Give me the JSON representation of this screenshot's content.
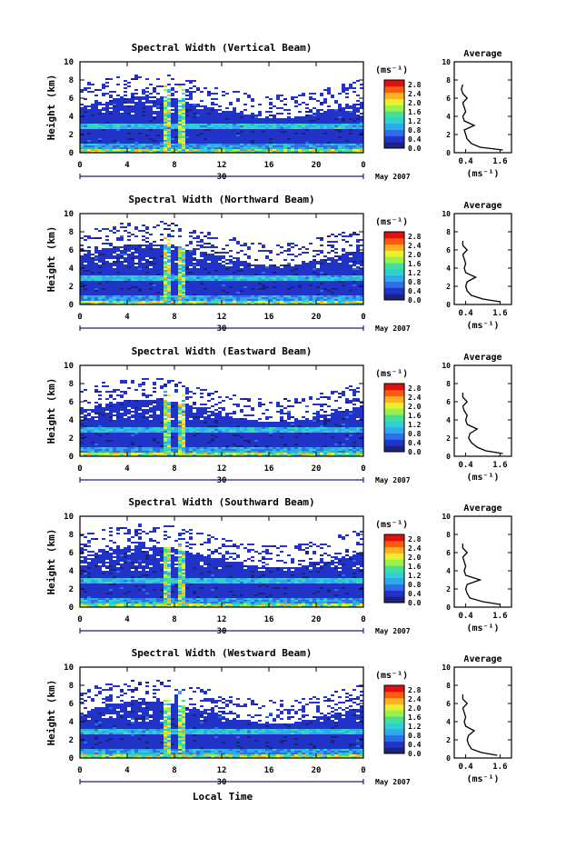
{
  "figure": {
    "xlabel": "Local Time",
    "date_label": "May 2007",
    "day_label": "30",
    "colors": {
      "white_gap": "#ffffff",
      "axes": "#000000"
    }
  },
  "colorbar": {
    "unit": "(ms⁻¹)",
    "ticks": [
      "2.8",
      "2.4",
      "2.0",
      "1.6",
      "1.2",
      "0.8",
      "0.4",
      "0.0"
    ],
    "range": [
      0.0,
      3.0
    ],
    "colormap": [
      "#1a237e",
      "#2233c8",
      "#2e6ee8",
      "#2fa8ee",
      "#30d0d0",
      "#44e09a",
      "#9cf04a",
      "#e8f030",
      "#ffb020",
      "#ff5a10",
      "#e01010"
    ]
  },
  "chart_data": [
    {
      "type": "heatmap",
      "title": "Spectral Width (Vertical Beam)",
      "xlabel": "",
      "ylabel": "Height (km)",
      "x_ticks": [
        "0",
        "4",
        "8",
        "12",
        "16",
        "20",
        "0"
      ],
      "y_ticks": [
        "0",
        "2",
        "4",
        "6",
        "8",
        "10"
      ],
      "xlim": [
        0,
        24
      ],
      "ylim": [
        0,
        10
      ],
      "profile": {
        "title": "Average",
        "xlabel": "(ms⁻¹)",
        "x_ticks": [
          "0.4",
          "1.6"
        ],
        "xlim": [
          0.0,
          2.0
        ],
        "y_ticks": [
          "0",
          "2",
          "4",
          "6",
          "8",
          "10"
        ],
        "height_km": [
          0.3,
          0.6,
          1.0,
          1.5,
          2.0,
          2.5,
          3.0,
          3.5,
          4.0,
          4.5,
          5.0,
          5.5,
          6.0,
          6.5,
          7.0,
          7.5
        ],
        "width": [
          1.7,
          0.9,
          0.6,
          0.45,
          0.4,
          0.35,
          0.7,
          0.35,
          0.3,
          0.4,
          0.35,
          0.3,
          0.45,
          0.3,
          0.25,
          0.3
        ]
      }
    },
    {
      "type": "heatmap",
      "title": "Spectral Width (Northward Beam)",
      "xlabel": "",
      "ylabel": "Height (km)",
      "x_ticks": [
        "0",
        "4",
        "8",
        "12",
        "16",
        "20",
        "0"
      ],
      "y_ticks": [
        "0",
        "2",
        "4",
        "6",
        "8",
        "10"
      ],
      "xlim": [
        0,
        24
      ],
      "ylim": [
        0,
        10
      ],
      "profile": {
        "title": "Average",
        "xlabel": "(ms⁻¹)",
        "x_ticks": [
          "0.4",
          "1.6"
        ],
        "xlim": [
          0.0,
          2.0
        ],
        "y_ticks": [
          "0",
          "2",
          "4",
          "6",
          "8",
          "10"
        ],
        "height_km": [
          0.3,
          0.6,
          1.0,
          1.5,
          2.0,
          2.5,
          3.0,
          3.5,
          4.0,
          4.5,
          5.0,
          5.5,
          6.0,
          6.5,
          7.0
        ],
        "width": [
          1.6,
          1.0,
          0.6,
          0.45,
          0.4,
          0.45,
          0.75,
          0.4,
          0.35,
          0.4,
          0.35,
          0.3,
          0.45,
          0.3,
          0.3
        ]
      }
    },
    {
      "type": "heatmap",
      "title": "Spectral Width (Eastward Beam)",
      "xlabel": "",
      "ylabel": "Height (km)",
      "x_ticks": [
        "0",
        "4",
        "8",
        "12",
        "16",
        "20",
        "0"
      ],
      "y_ticks": [
        "0",
        "2",
        "4",
        "6",
        "8",
        "10"
      ],
      "xlim": [
        0,
        24
      ],
      "ylim": [
        0,
        10
      ],
      "profile": {
        "title": "Average",
        "xlabel": "(ms⁻¹)",
        "x_ticks": [
          "0.4",
          "1.6"
        ],
        "xlim": [
          0.0,
          2.0
        ],
        "y_ticks": [
          "0",
          "2",
          "4",
          "6",
          "8",
          "10"
        ],
        "height_km": [
          0.3,
          0.6,
          1.0,
          1.5,
          2.0,
          2.5,
          3.0,
          3.5,
          4.0,
          4.5,
          5.0,
          5.5,
          6.0,
          6.5,
          7.0
        ],
        "width": [
          1.7,
          1.1,
          0.8,
          0.6,
          0.5,
          0.55,
          0.8,
          0.45,
          0.4,
          0.45,
          0.35,
          0.3,
          0.45,
          0.3,
          0.3
        ]
      }
    },
    {
      "type": "heatmap",
      "title": "Spectral Width (Southward Beam)",
      "xlabel": "",
      "ylabel": "Height (km)",
      "x_ticks": [
        "0",
        "4",
        "8",
        "12",
        "16",
        "20",
        "0"
      ],
      "y_ticks": [
        "0",
        "2",
        "4",
        "6",
        "8",
        "10"
      ],
      "xlim": [
        0,
        24
      ],
      "ylim": [
        0,
        10
      ],
      "profile": {
        "title": "Average",
        "xlabel": "(ms⁻¹)",
        "x_ticks": [
          "0.4",
          "1.6"
        ],
        "xlim": [
          0.0,
          2.0
        ],
        "y_ticks": [
          "0",
          "2",
          "4",
          "6",
          "8",
          "10"
        ],
        "height_km": [
          0.3,
          0.6,
          1.0,
          1.5,
          2.0,
          2.5,
          3.0,
          3.5,
          4.0,
          4.5,
          5.0,
          5.5,
          6.0,
          6.5,
          7.0
        ],
        "width": [
          1.6,
          1.0,
          0.55,
          0.45,
          0.4,
          0.45,
          0.9,
          0.4,
          0.35,
          0.4,
          0.35,
          0.3,
          0.45,
          0.3,
          0.3
        ]
      }
    },
    {
      "type": "heatmap",
      "title": "Spectral Width (Westward Beam)",
      "xlabel": "",
      "ylabel": "Height (km)",
      "x_ticks": [
        "0",
        "4",
        "8",
        "12",
        "16",
        "20",
        "0"
      ],
      "y_ticks": [
        "0",
        "2",
        "4",
        "6",
        "8",
        "10"
      ],
      "xlim": [
        0,
        24
      ],
      "ylim": [
        0,
        10
      ],
      "profile": {
        "title": "Average",
        "xlabel": "(ms⁻¹)",
        "x_ticks": [
          "0.4",
          "1.6"
        ],
        "xlim": [
          0.0,
          2.0
        ],
        "y_ticks": [
          "0",
          "2",
          "4",
          "6",
          "8",
          "10"
        ],
        "height_km": [
          0.3,
          0.6,
          1.0,
          1.5,
          2.0,
          2.5,
          3.0,
          3.5,
          4.0,
          4.5,
          5.0,
          5.5,
          6.0,
          6.5,
          7.0
        ],
        "width": [
          1.5,
          0.95,
          0.6,
          0.5,
          0.45,
          0.5,
          0.7,
          0.4,
          0.35,
          0.4,
          0.35,
          0.3,
          0.45,
          0.3,
          0.3
        ]
      }
    }
  ]
}
